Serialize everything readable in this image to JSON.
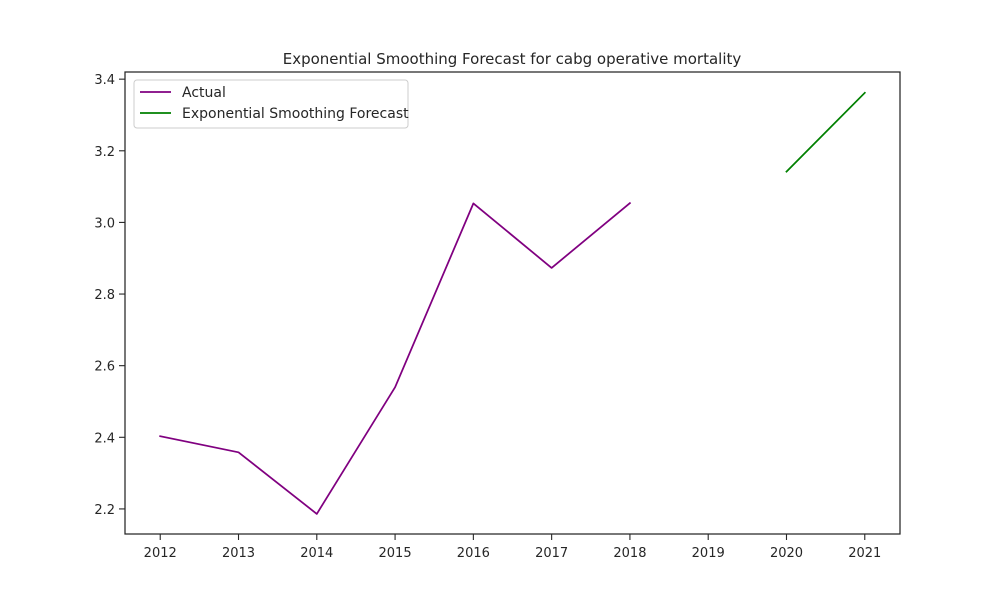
{
  "chart_data": {
    "type": "line",
    "title": "Exponential Smoothing Forecast for cabg operative mortality",
    "xlabel": "",
    "ylabel": "",
    "x_ticks": [
      "2012",
      "2013",
      "2014",
      "2015",
      "2016",
      "2017",
      "2018",
      "2019",
      "2020",
      "2021"
    ],
    "y_ticks": [
      "2.2",
      "2.4",
      "2.6",
      "2.8",
      "3.0",
      "3.2",
      "3.4"
    ],
    "xlim": [
      2011.55,
      2021.45
    ],
    "ylim": [
      2.13,
      3.42
    ],
    "grid": false,
    "legend_position": "top-left",
    "series": [
      {
        "name": "Actual",
        "color": "#800080",
        "x": [
          2012,
          2013,
          2014,
          2015,
          2016,
          2017,
          2018
        ],
        "y": [
          2.403,
          2.358,
          2.186,
          2.54,
          3.053,
          2.873,
          3.054
        ]
      },
      {
        "name": "Exponential Smoothing Forecast",
        "color": "#008000",
        "x": [
          2020,
          2021
        ],
        "y": [
          3.142,
          3.362
        ]
      }
    ]
  }
}
